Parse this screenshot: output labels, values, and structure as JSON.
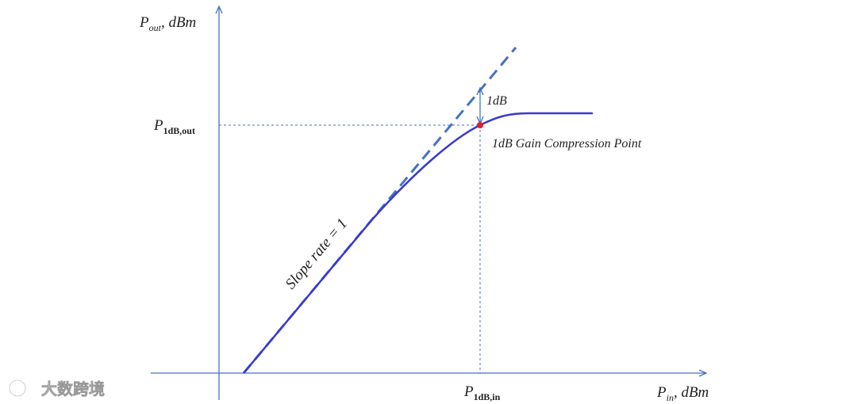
{
  "y_axis_label": {
    "base": "P",
    "sub": "out",
    "rest": ", dBm"
  },
  "x_axis_label": {
    "base": "P",
    "sub": "in",
    "rest": ", dBm"
  },
  "p1db_out_label": {
    "base": "P",
    "sub": "1dB,out"
  },
  "p1db_in_label": {
    "base": "P",
    "sub": "1dB,in"
  },
  "delta_label": "1dB",
  "point_label": "1dB Gain Compression Point",
  "slope_label": "Slope rate = 1",
  "watermark": "大数跨境"
}
